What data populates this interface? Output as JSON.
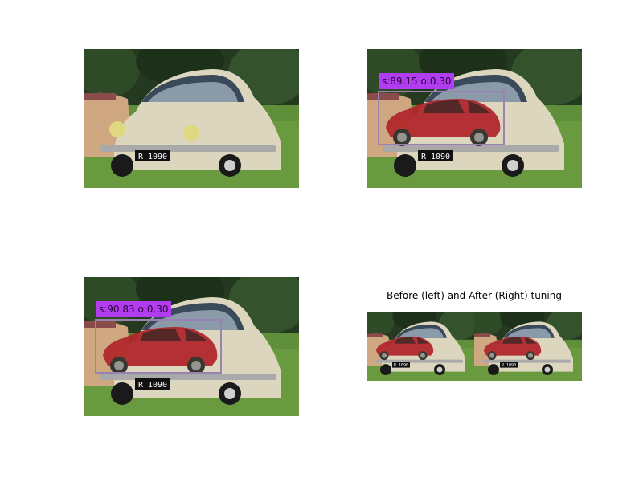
{
  "figure": {
    "subplot_title": "Before (left) and After (Right) tuning"
  },
  "panels": [
    {
      "name": "original-photo",
      "plate": "R 1090"
    },
    {
      "name": "detection-before",
      "plate": "R 1090",
      "detection": {
        "label": "s:89.15 o:0.30"
      }
    },
    {
      "name": "detection-after",
      "plate": "R 1090",
      "detection": {
        "label": "s:90.83 o:0.30"
      }
    },
    {
      "name": "comparison",
      "plates": [
        "R 1090",
        "R 1090"
      ]
    }
  ],
  "colors": {
    "grass": "#5f8f3a",
    "trees": "#24391f",
    "car_body": "#ddd6bf",
    "overlay_car": "#b0242a",
    "box": "#9a82b0",
    "label_bg": "#b13cf0"
  }
}
